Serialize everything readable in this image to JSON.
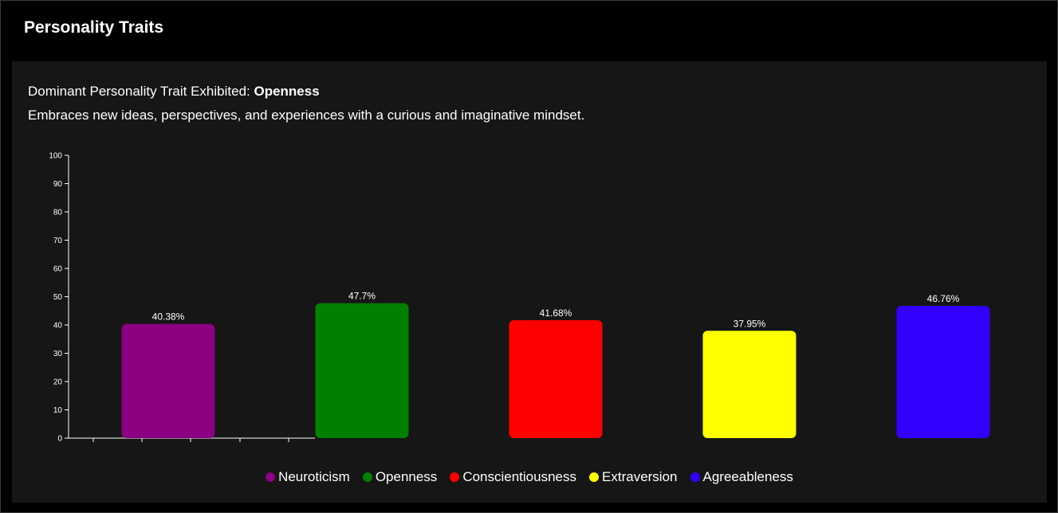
{
  "header": {
    "title": "Personality Traits"
  },
  "summary": {
    "dominant_prefix": "Dominant Personality Trait Exhibited: ",
    "dominant_trait": "Openness",
    "description": "Embraces new ideas, perspectives, and experiences with a curious and imaginative mindset."
  },
  "chart_data": {
    "type": "bar",
    "title": "",
    "xlabel": "",
    "ylabel": "",
    "ylim": [
      0,
      100
    ],
    "yticks": [
      0,
      10,
      20,
      30,
      40,
      50,
      60,
      70,
      80,
      90,
      100
    ],
    "grid": false,
    "legend_position": "bottom-center",
    "categories": [
      "Neuroticism",
      "Openness",
      "Conscientiousness",
      "Extraversion",
      "Agreeableness"
    ],
    "values": [
      40.38,
      47.7,
      41.68,
      37.95,
      46.76
    ],
    "value_labels": [
      "40.38%",
      "47.7%",
      "41.68%",
      "37.95%",
      "46.76%"
    ],
    "colors": [
      "#8b0080",
      "#008000",
      "#ff0000",
      "#ffff00",
      "#3300ff"
    ]
  }
}
